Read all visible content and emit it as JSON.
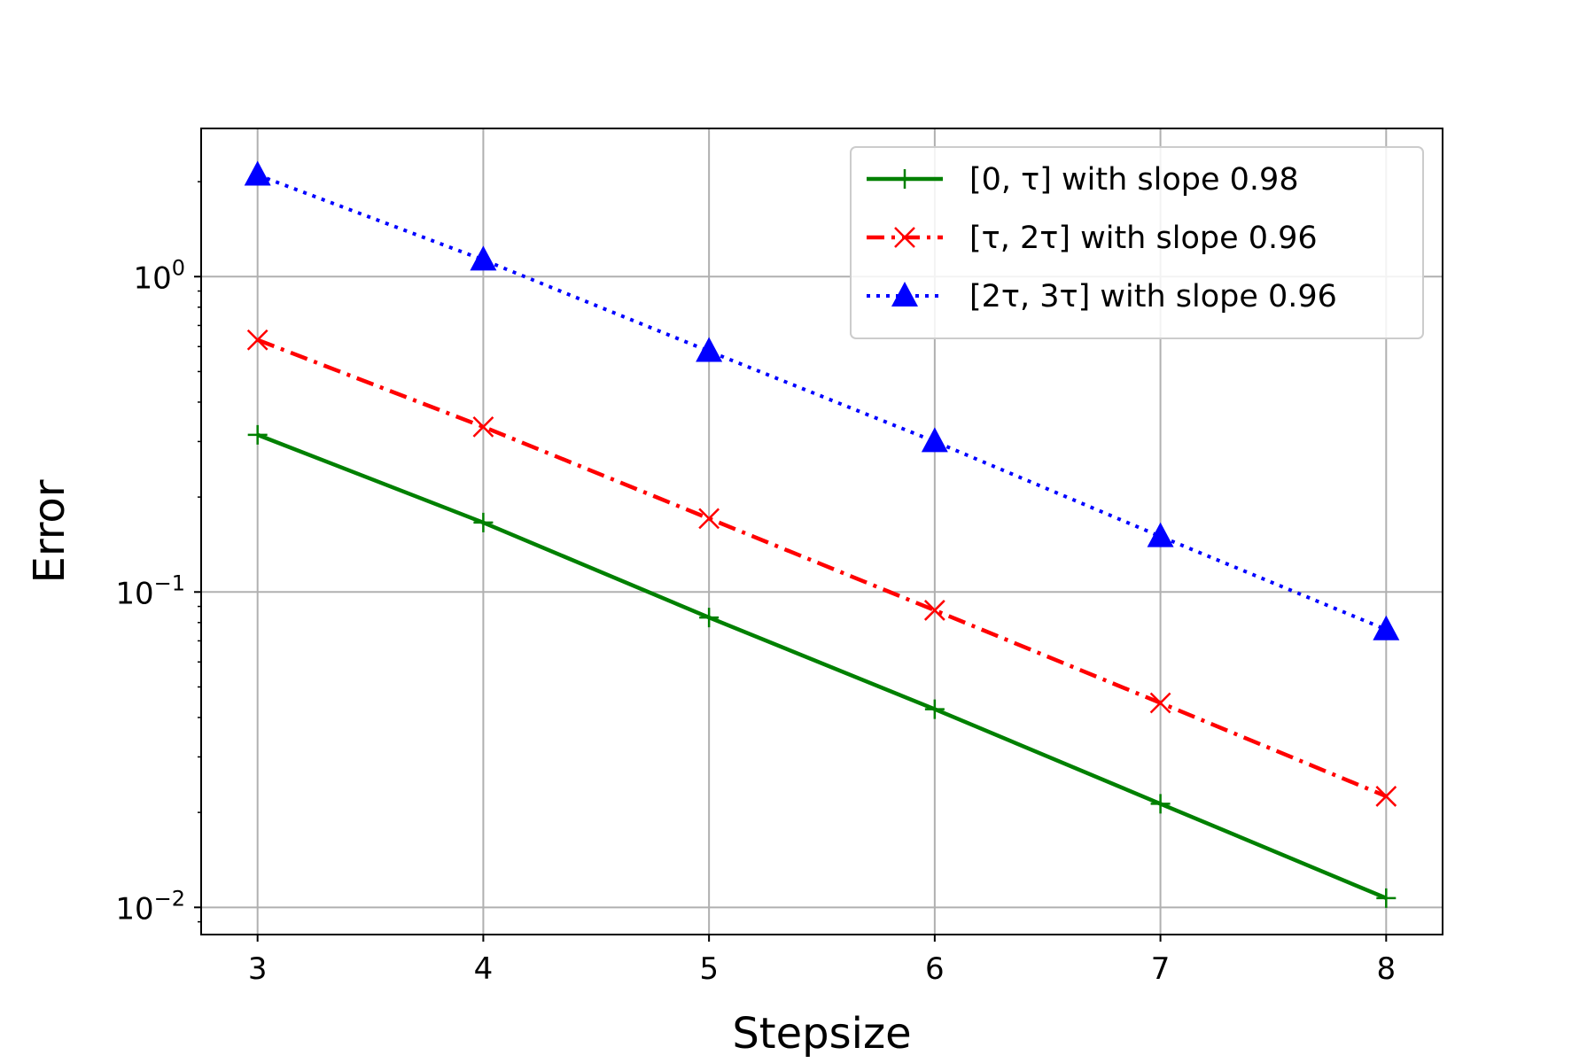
{
  "chart_data": {
    "type": "line",
    "xlabel": "Stepsize",
    "ylabel": "Error",
    "x": [
      3,
      4,
      5,
      6,
      7,
      8
    ],
    "xlim": [
      2.75,
      8.25
    ],
    "ylim": [
      0.0082,
      2.95
    ],
    "yscale": "log",
    "xticks": [
      3,
      4,
      5,
      6,
      7,
      8
    ],
    "yticks": [
      {
        "value": 1,
        "base": "10",
        "exp": "0"
      },
      {
        "value": 0.1,
        "base": "10",
        "exp": "−1"
      },
      {
        "value": 0.01,
        "base": "10",
        "exp": "−2"
      }
    ],
    "grid": true,
    "legend_position": "top-right",
    "series": [
      {
        "name": "[0, τ] with slope 0.98",
        "color": "#008000",
        "linestyle": "solid",
        "marker": "plus",
        "values": [
          0.315,
          0.166,
          0.083,
          0.0425,
          0.0213,
          0.0107
        ]
      },
      {
        "name": "[τ, 2τ] with slope 0.96",
        "color": "#ff0000",
        "linestyle": "dashdot",
        "marker": "x",
        "values": [
          0.63,
          0.334,
          0.171,
          0.0875,
          0.0445,
          0.0225
        ]
      },
      {
        "name": "[2τ, 3τ] with slope 0.96",
        "color": "#0000ff",
        "linestyle": "dotted",
        "marker": "triangle",
        "values": [
          2.1,
          1.13,
          0.58,
          0.3,
          0.15,
          0.076
        ]
      }
    ]
  }
}
